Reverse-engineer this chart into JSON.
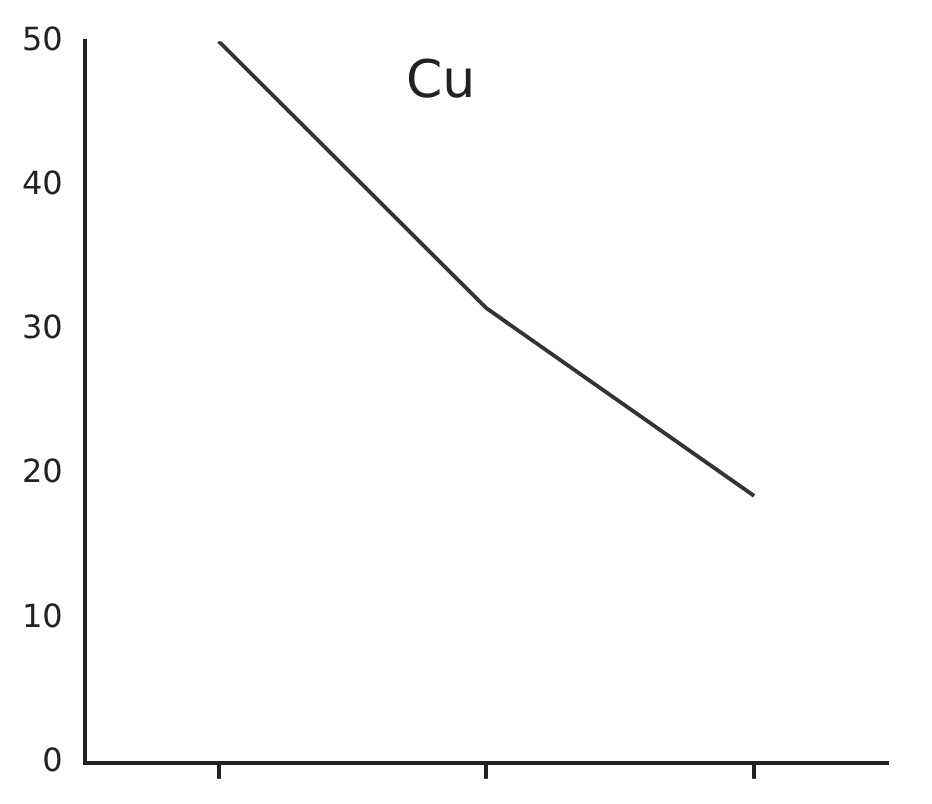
{
  "chart_data": {
    "type": "line",
    "categories": [
      null,
      null,
      null
    ],
    "series": [
      {
        "color": "#333333",
        "values": [
          50,
          31.5,
          18.5
        ]
      }
    ],
    "ylim": [
      0,
      50
    ],
    "yticks": [
      0,
      10,
      20,
      30,
      40,
      50
    ],
    "grid": false,
    "tick_labels": "y",
    "marker": "none",
    "line_style": "solid",
    "legend": false,
    "annotations": [
      "Cu"
    ]
  }
}
